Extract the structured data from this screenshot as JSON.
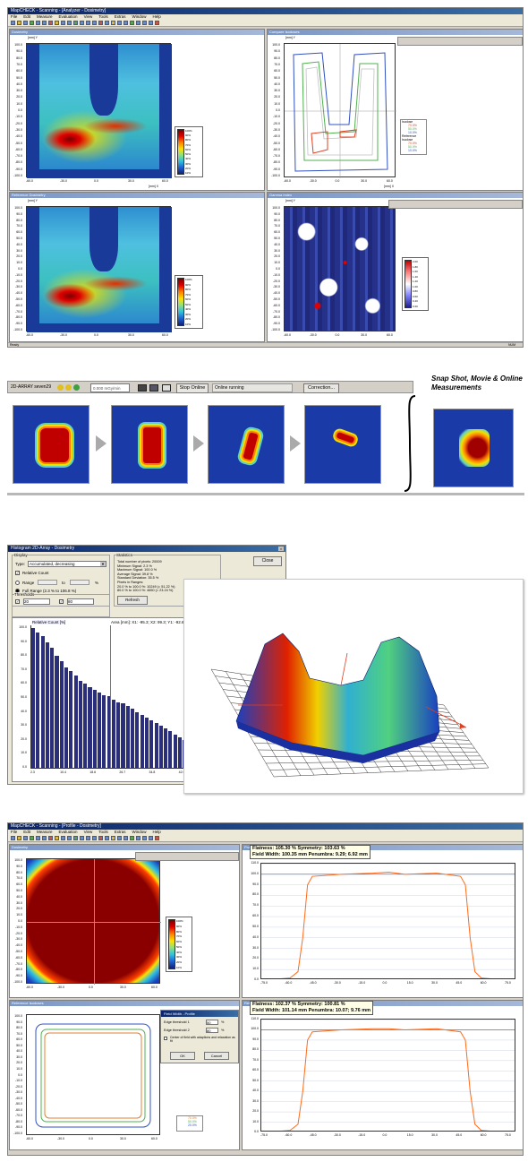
{
  "section1": {
    "window_title": "MapCHECK - Scanning - [Analyzer - Dosimetry]",
    "menu": [
      "File",
      "Edit",
      "Measure",
      "Evaluation",
      "View",
      "Tools",
      "Extras",
      "Window",
      "Help"
    ],
    "panels": [
      {
        "title": "Dosimetry"
      },
      {
        "title": "Compare Isodoses"
      },
      {
        "title": "Reference Dosimetry"
      },
      {
        "title": "Gamma Index"
      }
    ],
    "y_ticks": [
      "100.0",
      "90.0",
      "80.0",
      "70.0",
      "60.0",
      "50.0",
      "40.0",
      "30.0",
      "20.0",
      "10.0",
      "0.0",
      "-10.0",
      "-20.0",
      "-30.0",
      "-40.0",
      "-50.0",
      "-60.0",
      "-70.0",
      "-80.0",
      "-90.0",
      "-100.0"
    ],
    "x_ticks": [
      "-60.0",
      "-30.0",
      "0.0",
      "30.0",
      "60.0"
    ],
    "y_axis_label": "[mm] Y",
    "x_axis_label": "[mm] X",
    "colorbar_ticks": [
      "100%",
      "90%",
      "80%",
      "70%",
      "60%",
      "50%",
      "40%",
      "30%",
      "20%",
      "10%"
    ],
    "isodose_legend": {
      "group1_label": "Isodose",
      "group1": [
        "70.0%",
        "50.0%",
        "10.0%"
      ],
      "group2_label": "Reference Isodose",
      "group2": [
        "70.0%",
        "50.0%",
        "10.0%"
      ]
    },
    "gamma_ticks": [
      "2.00",
      "1.80",
      "1.60",
      "1.40",
      "1.20",
      "1.00",
      "0.80",
      "0.60",
      "0.40",
      "0.20"
    ],
    "status_left": "Ready",
    "status_right": "NUM"
  },
  "section2": {
    "device_label": "2D-ARRAY seven29",
    "input_value": "0.000 mGy/min",
    "stop_button": "Stop Online",
    "status_field": "Online running",
    "correction_button": "Correction...",
    "caption": "Snap Shot, Movie & Online Measurements"
  },
  "section3": {
    "dialog_title": "Histogram 2D-Array - Dosimetry",
    "display_label": "Display",
    "type_label": "Type:",
    "type_value": "Accumulated, decreasing",
    "relative_count": "Relative Count",
    "range_label": "Range",
    "range_to": "to",
    "range_unit": "%",
    "full_range": "Full Range (2.3 % to 106.8 %)",
    "thresholds_label": "Thresholds",
    "t1_value": "20",
    "t2_value": "80",
    "refresh_button": "Refresh",
    "statistics_label": "Statistics",
    "stats": [
      "Total number of pixels: 20009",
      "Minimum Signal: 2.3 %",
      "Maximum Signal: 100.0 %",
      "Average Signal: 39.8 %",
      "Standard Deviation: 35.5 %",
      "Pixels in Ranges:",
      "20.0 % to 100.0 %: 10249 (= 51.22 %)",
      "80.0 % to 100.0 %: 4650 (= 23.24 %)"
    ],
    "close_button": "Close",
    "chart_header": "Relative Count [%]",
    "area_text": "Area [mm]: X1: -95.3; X2: 99.3; Y1: -92.6;"
  },
  "section4": {
    "window_title": "MapCHECK - Scanning - [Profile - Dosimetry]",
    "panel_left_top": "Dosimetry",
    "panel_left_bottom": "Reference Isodoses",
    "panel_right_top": "Profile",
    "panel_right_bottom": "Reference Profile",
    "profile_top": {
      "line1": "Flatness: 105.30 %   Symmetry: 103.63 %",
      "line2": "Field Width: 100.35 mm   Penumbra:  9.29;  6.92 mm"
    },
    "profile_bottom": {
      "line1": "Flatness: 102.37 %   Symmetry: 100.81 %",
      "line2": "Field Width: 101.14 mm   Penumbra:  10.07;  9.76 mm"
    },
    "profile_y_ticks": [
      "110.0",
      "100.0",
      "90.0",
      "80.0",
      "70.0",
      "60.0",
      "50.0",
      "40.0",
      "30.0",
      "20.0",
      "10.0",
      "0.0"
    ],
    "profile_x_ticks": [
      "-75.0",
      "-60.0",
      "-45.0",
      "-30.0",
      "-15.0",
      "0.0",
      "15.0",
      "30.0",
      "45.0",
      "60.0",
      "75.0"
    ],
    "dialog": {
      "title": "Field Width - Profile",
      "row1_label": "Edge threshold 1",
      "row1_value": "50",
      "row1_unit": "%",
      "row2_label": "Edge threshold 2",
      "row2_value": "80",
      "row2_unit": "%",
      "checkbox": "Center of field with adaptions and relaxation as fit",
      "ok": "OK",
      "cancel": "Cancel"
    },
    "legend_bottom": [
      "70.0%",
      "50.0%",
      "20.0%"
    ]
  },
  "colors": {
    "title_bar": "#0a246a",
    "heat_red": "#e00000",
    "profile_orange": "#ff6a1a",
    "histogram_bar": "#2b2f7a",
    "threshold_green": "#3aa040"
  }
}
